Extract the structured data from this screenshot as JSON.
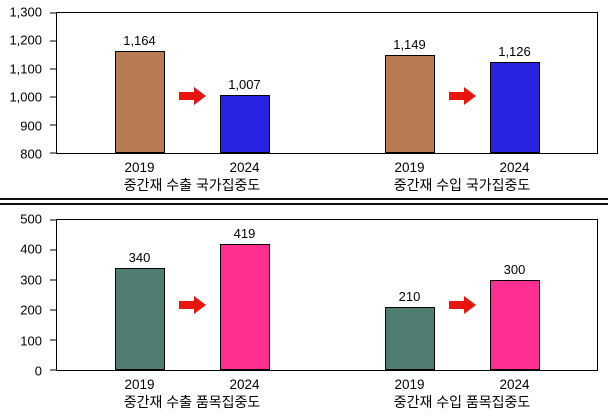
{
  "figure": {
    "background": "#ffffff",
    "arrow_color": "#e8150e"
  },
  "chart_data": [
    {
      "type": "bar",
      "title": "",
      "xlabel": "",
      "ylabel": "",
      "ylim": [
        800,
        1300
      ],
      "grid": false,
      "yticks": [
        {
          "v": 800,
          "label": "800"
        },
        {
          "v": 900,
          "label": "900"
        },
        {
          "v": 1000,
          "label": "1,000"
        },
        {
          "v": 1100,
          "label": "1,100"
        },
        {
          "v": 1200,
          "label": "1,200"
        },
        {
          "v": 1300,
          "label": "1,300"
        }
      ],
      "categories": [
        "2019",
        "2024"
      ],
      "series_colors": {
        "2019": "#b87a52",
        "2024": "#2823e1"
      },
      "arrow_color": "#e8150e",
      "groups": [
        {
          "label": "중간재 수출 국가집중도",
          "bars": [
            {
              "category": "2019",
              "value": 1164,
              "label": "1,164",
              "color": "#b87a52"
            },
            {
              "category": "2024",
              "value": 1007,
              "label": "1,007",
              "color": "#2823e1"
            }
          ]
        },
        {
          "label": "중간재 수입 국가집중도",
          "bars": [
            {
              "category": "2019",
              "value": 1149,
              "label": "1,149",
              "color": "#b87a52"
            },
            {
              "category": "2024",
              "value": 1126,
              "label": "1,126",
              "color": "#2823e1"
            }
          ]
        }
      ]
    },
    {
      "type": "bar",
      "title": "",
      "xlabel": "",
      "ylabel": "",
      "ylim": [
        0,
        500
      ],
      "grid": false,
      "yticks": [
        {
          "v": 0,
          "label": "0"
        },
        {
          "v": 100,
          "label": "100"
        },
        {
          "v": 200,
          "label": "200"
        },
        {
          "v": 300,
          "label": "300"
        },
        {
          "v": 400,
          "label": "400"
        },
        {
          "v": 500,
          "label": "500"
        }
      ],
      "categories": [
        "2019",
        "2024"
      ],
      "series_colors": {
        "2019": "#4f7d72",
        "2024": "#ff2f8f"
      },
      "arrow_color": "#e8150e",
      "groups": [
        {
          "label": "중간재 수출 품목집중도",
          "bars": [
            {
              "category": "2019",
              "value": 340,
              "label": "340",
              "color": "#4f7d72"
            },
            {
              "category": "2024",
              "value": 419,
              "label": "419",
              "color": "#ff2f8f"
            }
          ]
        },
        {
          "label": "중간재 수입 품목집중도",
          "bars": [
            {
              "category": "2019",
              "value": 210,
              "label": "210",
              "color": "#4f7d72"
            },
            {
              "category": "2024",
              "value": 300,
              "label": "300",
              "color": "#ff2f8f"
            }
          ]
        }
      ]
    }
  ]
}
